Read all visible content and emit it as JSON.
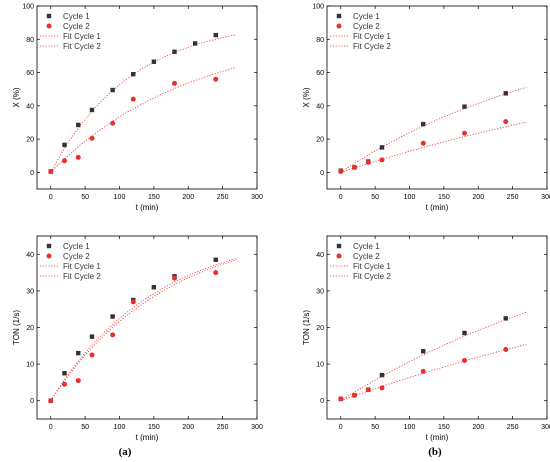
{
  "colors": {
    "cycle1": "#333333",
    "cycle2": "#e8302e",
    "fit": "#e8302e",
    "axis": "#000000"
  },
  "captions": [
    "(a)",
    "(b)"
  ],
  "chart_data": [
    {
      "type": "scatter",
      "xlabel": "t (min)",
      "ylabel": "X (%)",
      "xlim": [
        -20,
        300
      ],
      "ylim": [
        -10,
        100
      ],
      "xticks": [
        0,
        50,
        100,
        150,
        200,
        250,
        300
      ],
      "yticks": [
        0,
        20,
        40,
        60,
        80,
        100
      ],
      "grid": false,
      "legend": "top-left",
      "series": [
        {
          "name": "Cycle 1",
          "marker": "square",
          "x": [
            0,
            20,
            40,
            60,
            90,
            120,
            150,
            180,
            210,
            240
          ],
          "y": [
            0.5,
            16.5,
            28.5,
            37.5,
            49.5,
            59,
            66.5,
            72.5,
            77.5,
            82.5
          ]
        },
        {
          "name": "Cycle 2",
          "marker": "circle",
          "x": [
            0,
            20,
            40,
            60,
            90,
            120,
            180,
            240
          ],
          "y": [
            0.5,
            7,
            9,
            20.5,
            29.5,
            44,
            53.5,
            56
          ]
        },
        {
          "name": "Fit Cycle 1",
          "kind": "fit",
          "style": "dotted",
          "k": 0.0085,
          "ymax": 92
        },
        {
          "name": "Fit Cycle 2",
          "kind": "fit",
          "style": "dotted",
          "k": 0.0049,
          "ymax": 86
        }
      ]
    },
    {
      "type": "scatter",
      "xlabel": "t (min)",
      "ylabel": "X (%)",
      "xlim": [
        -20,
        300
      ],
      "ylim": [
        -10,
        100
      ],
      "xticks": [
        0,
        50,
        100,
        150,
        200,
        250,
        300
      ],
      "yticks": [
        0,
        20,
        40,
        60,
        80,
        100
      ],
      "grid": false,
      "legend": "top-left",
      "series": [
        {
          "name": "Cycle 1",
          "marker": "square",
          "x": [
            0,
            20,
            40,
            60,
            120,
            180,
            240
          ],
          "y": [
            1,
            3,
            6.5,
            15,
            29,
            39.5,
            47.5
          ]
        },
        {
          "name": "Cycle 2",
          "marker": "circle",
          "x": [
            0,
            20,
            40,
            60,
            120,
            180,
            240
          ],
          "y": [
            0.5,
            3,
            6,
            7.5,
            17.5,
            23.5,
            30.5
          ]
        },
        {
          "name": "Fit Cycle 1",
          "kind": "fit",
          "style": "dotted",
          "k": 0.003,
          "ymax": 92
        },
        {
          "name": "Fit Cycle 2",
          "kind": "fit",
          "style": "dotted",
          "k": 0.0016,
          "ymax": 86
        }
      ]
    },
    {
      "type": "scatter",
      "xlabel": "t (min)",
      "ylabel": "TON (1/s)",
      "xlim": [
        -20,
        300
      ],
      "ylim": [
        -5,
        45
      ],
      "xticks": [
        0,
        50,
        100,
        150,
        200,
        250,
        300
      ],
      "yticks": [
        0,
        10,
        20,
        30,
        40
      ],
      "grid": false,
      "legend": "top-left",
      "series": [
        {
          "name": "Cycle 1",
          "marker": "square",
          "x": [
            0,
            20,
            40,
            60,
            90,
            120,
            150,
            180,
            240
          ],
          "y": [
            0,
            7.5,
            13,
            17.5,
            23,
            27.5,
            31,
            34,
            38.5
          ]
        },
        {
          "name": "Cycle 2",
          "marker": "circle",
          "x": [
            0,
            20,
            40,
            60,
            90,
            120,
            180,
            240
          ],
          "y": [
            0,
            4.5,
            5.5,
            12.5,
            18,
            27,
            33.5,
            35
          ]
        },
        {
          "name": "Fit Cycle 1",
          "kind": "fit",
          "style": "dotted",
          "k": 0.0065,
          "ymax": 47
        },
        {
          "name": "Fit Cycle 2",
          "kind": "fit",
          "style": "dotted",
          "k": 0.006,
          "ymax": 48
        }
      ]
    },
    {
      "type": "scatter",
      "xlabel": "t (min)",
      "ylabel": "TON (1/s)",
      "xlim": [
        -20,
        300
      ],
      "ylim": [
        -5,
        45
      ],
      "xticks": [
        0,
        50,
        100,
        150,
        200,
        250,
        300
      ],
      "yticks": [
        0,
        10,
        20,
        30,
        40
      ],
      "grid": false,
      "legend": "top-left",
      "series": [
        {
          "name": "Cycle 1",
          "marker": "square",
          "x": [
            0,
            20,
            40,
            60,
            120,
            180,
            240
          ],
          "y": [
            0.5,
            1.5,
            3,
            7,
            13.5,
            18.5,
            22.5
          ]
        },
        {
          "name": "Cycle 2",
          "marker": "circle",
          "x": [
            0,
            20,
            40,
            60,
            120,
            180,
            240
          ],
          "y": [
            0.5,
            1.5,
            3,
            3.5,
            8,
            11,
            14
          ]
        },
        {
          "name": "Fit Cycle 1",
          "kind": "fit",
          "style": "dotted",
          "k": 0.0022,
          "ymax": 54
        },
        {
          "name": "Fit Cycle 2",
          "kind": "fit",
          "style": "dotted",
          "k": 0.0013,
          "ymax": 52
        }
      ]
    }
  ]
}
